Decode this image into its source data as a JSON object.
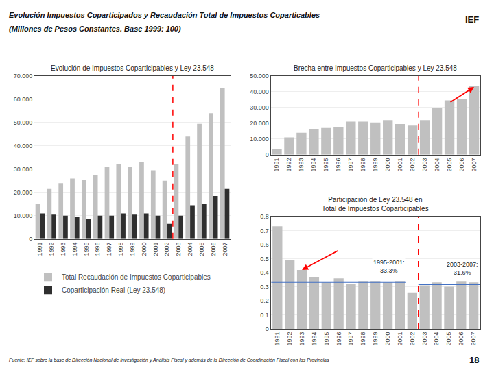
{
  "title": "Evolución Impuestos Coparticipados y Recaudación Total de Impuestos Coparticables",
  "subtitle": "(Millones de Pesos Constantes. Base 1999: 100)",
  "annotations": [
    "IEF",
    "Fuente: IEF sobre la base de Dirección Nacional de Investigación y Análisis Fiscal y además de la Dirección de Coordinación Fiscal con las Provincias",
    "18"
  ],
  "chart_data": [
    {
      "type": "bar",
      "title": "Evolución de Impuestos Coparticipables y Ley 23.548",
      "categories": [
        "1991",
        "1992",
        "1993",
        "1994",
        "1995",
        "1996",
        "1997",
        "1998",
        "1999",
        "2000",
        "2001",
        "2002",
        "2003",
        "2004",
        "2005",
        "2006",
        "2007"
      ],
      "series": [
        {
          "name": "Total Recaudación de Impuestos Coparticipables",
          "color": "#C0C0C0",
          "values": [
            15000,
            21500,
            24000,
            26000,
            25500,
            27500,
            31000,
            32000,
            31000,
            33000,
            29500,
            25000,
            32000,
            44000,
            49500,
            54000,
            65000
          ]
        },
        {
          "name": "Coparticipación Real (Ley 23.548)",
          "color": "#2F2F2F",
          "values": [
            11000,
            10500,
            10000,
            9500,
            8500,
            10000,
            10000,
            11000,
            10500,
            11000,
            10000,
            6500,
            10000,
            14500,
            15000,
            18500,
            21500
          ]
        }
      ],
      "ylim": [
        0,
        70000
      ],
      "yticks": [
        0,
        {
          "value": 10000,
          "label": "10.000"
        },
        {
          "value": 20000,
          "label": "20.000"
        },
        {
          "value": 30000,
          "label": "30.000"
        },
        {
          "value": 40000,
          "label": "40.000"
        },
        {
          "value": 50000,
          "label": "50.000"
        },
        {
          "value": 60000,
          "label": "60.000"
        },
        {
          "value": 70000,
          "label": "70.000"
        }
      ],
      "grid": true,
      "legend": "bottom",
      "divider": {
        "after": "2002",
        "color": "red",
        "line_style": "dashed"
      }
    },
    {
      "type": "bar",
      "title": "Brecha entre Impuestos Coparticipables y Ley 23.548",
      "categories": [
        "1991",
        "1992",
        "1993",
        "1994",
        "1995",
        "1996",
        "1997",
        "1998",
        "1999",
        "2000",
        "2001",
        "2002",
        "2003",
        "2004",
        "2005",
        "2006",
        "2007"
      ],
      "values": [
        3500,
        11000,
        14000,
        16500,
        17000,
        17500,
        21000,
        21000,
        20500,
        22000,
        19500,
        18500,
        22000,
        29500,
        34500,
        35500,
        43500
      ],
      "color": "#C0C0C0",
      "ylim": [
        0,
        50000
      ],
      "yticks": [
        0,
        {
          "value": 10000,
          "label": "10.000"
        },
        {
          "value": 20000,
          "label": "20.000"
        },
        {
          "value": 30000,
          "label": "30.000"
        },
        {
          "value": 40000,
          "label": "40.000"
        },
        {
          "value": 50000,
          "label": "50.000"
        }
      ],
      "grid": true,
      "divider": {
        "after": "2002",
        "color": "red",
        "line_style": "dashed"
      },
      "arrows": [
        {
          "from": [
            "2005",
            33000
          ],
          "to": [
            "2007",
            43000
          ],
          "color": "red"
        }
      ]
    },
    {
      "type": "bar",
      "title": "Participación de Ley 23.548 en\nTotal de Impuestos Coparticipables",
      "categories": [
        "1991",
        "1992",
        "1993",
        "1994",
        "1995",
        "1996",
        "1997",
        "1998",
        "1999",
        "2000",
        "2001",
        "2002",
        "2003",
        "2004",
        "2005",
        "2006",
        "2007"
      ],
      "values": [
        0.73,
        0.49,
        0.42,
        0.37,
        0.33,
        0.36,
        0.32,
        0.34,
        0.34,
        0.33,
        0.34,
        0.26,
        0.31,
        0.33,
        0.3,
        0.34,
        0.33
      ],
      "color": "#C0C0C0",
      "ylim": [
        0,
        0.8
      ],
      "yticks": [
        0,
        0.1,
        0.2,
        0.3,
        0.4,
        0.5,
        0.6,
        0.7,
        0.8
      ],
      "grid": true,
      "divider": {
        "after": "2002",
        "color": "red",
        "line_style": "dashed"
      },
      "reference_lines": [
        {
          "value": 0.333,
          "from": "1991",
          "to": "2001",
          "color": "#4472C4",
          "label": "1995-2001:\n33.3%"
        },
        {
          "value": 0.316,
          "from": "2003",
          "to": "2007",
          "color": "#4472C4",
          "label": "2003-2007:\n31.6%"
        }
      ],
      "arrows": [
        {
          "from": [
            "1996",
            0.56
          ],
          "to": [
            "1993",
            0.42
          ],
          "color": "red"
        }
      ]
    }
  ]
}
